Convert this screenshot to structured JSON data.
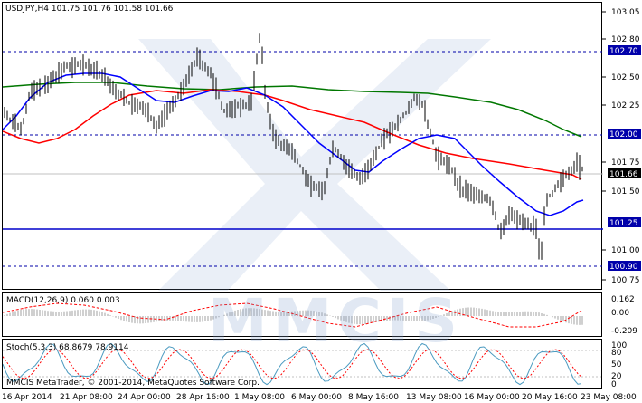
{
  "header": {
    "symbol": "USDJPY,H4",
    "ohlc": "101.75 101.76 101.58 101.66"
  },
  "price_axis": {
    "ticks": [
      "103.05",
      "102.80",
      "102.70",
      "102.50",
      "102.25",
      "102.00",
      "101.75",
      "101.66",
      "101.50",
      "101.25",
      "101.00",
      "100.90",
      "100.75"
    ],
    "highlighted": [
      "102.70",
      "102.00",
      "101.66",
      "101.25",
      "100.90"
    ]
  },
  "levels": [
    {
      "price": "102.70",
      "style": "dashed",
      "color": "#0000aa"
    },
    {
      "price": "102.00",
      "style": "dashed",
      "color": "#0000aa"
    },
    {
      "price": "101.25",
      "style": "solid",
      "color": "#0000cc"
    },
    {
      "price": "100.90",
      "style": "dashed",
      "color": "#0000aa"
    }
  ],
  "macd_panel": {
    "label": "MACD(12,26,9) 0.060 0.003",
    "ticks": [
      "0.162",
      "0.00",
      "-0.209"
    ]
  },
  "stoch_panel": {
    "label": "Stoch(5,3,3) 68.8679 78.9114",
    "ticks": [
      "100",
      "80",
      "50",
      "20",
      "0"
    ]
  },
  "copyright": "MMCIS MetaTrader, © 2001-2014, MetaQuotes Software Corp.",
  "watermark": "MMCIS",
  "time_axis": [
    "16 Apr 2014",
    "21 Apr 08:00",
    "24 Apr 00:00",
    "28 Apr 16:00",
    "1 May 08:00",
    "6 May 00:00",
    "8 May 16:00",
    "13 May 08:00",
    "16 May 00:00",
    "20 May 16:00",
    "23 May 08:00"
  ],
  "colors": {
    "ma_fast": "#0000ff",
    "ma_mid": "#ff0000",
    "ma_slow": "#007700",
    "price": "#000000",
    "level": "#0000aa",
    "macd_hist": "#a0a0a0",
    "macd_signal": "#ff0000",
    "stoch_main": "#4a9ac0",
    "stoch_signal": "#ff0000"
  }
}
